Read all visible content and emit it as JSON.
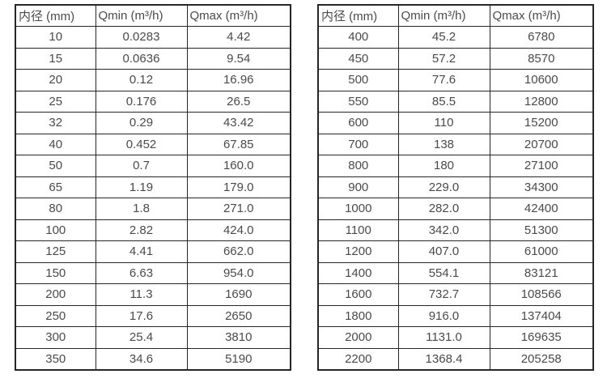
{
  "page": {
    "background_color": "#ffffff",
    "border_color": "#262626",
    "text_color": "#4a4a4a"
  },
  "tables": [
    {
      "name": "flow-table-small-diameters",
      "headers": [
        "内径 (mm)",
        "Qmin (m³/h)",
        "Qmax (m³/h)"
      ],
      "rows": [
        [
          "10",
          "0.0283",
          "4.42"
        ],
        [
          "15",
          "0.0636",
          "9.54"
        ],
        [
          "20",
          "0.12",
          "16.96"
        ],
        [
          "25",
          "0.176",
          "26.5"
        ],
        [
          "32",
          "0.29",
          "43.42"
        ],
        [
          "40",
          "0.452",
          "67.85"
        ],
        [
          "50",
          "0.7",
          "160.0"
        ],
        [
          "65",
          "1.19",
          "179.0"
        ],
        [
          "80",
          "1.8",
          "271.0"
        ],
        [
          "100",
          "2.82",
          "424.0"
        ],
        [
          "125",
          "4.41",
          "662.0"
        ],
        [
          "150",
          "6.63",
          "954.0"
        ],
        [
          "200",
          "11.3",
          "1690"
        ],
        [
          "250",
          "17.6",
          "2650"
        ],
        [
          "300",
          "25.4",
          "3810"
        ],
        [
          "350",
          "34.6",
          "5190"
        ]
      ]
    },
    {
      "name": "flow-table-large-diameters",
      "headers": [
        "内径 (mm)",
        "Qmin (m³/h)",
        "Qmax (m³/h)"
      ],
      "rows": [
        [
          "400",
          "45.2",
          "6780"
        ],
        [
          "450",
          "57.2",
          "8570"
        ],
        [
          "500",
          "77.6",
          "10600"
        ],
        [
          "550",
          "85.5",
          "12800"
        ],
        [
          "600",
          "110",
          "15200"
        ],
        [
          "700",
          "138",
          "20700"
        ],
        [
          "800",
          "180",
          "27100"
        ],
        [
          "900",
          "229.0",
          "34300"
        ],
        [
          "1000",
          "282.0",
          "42400"
        ],
        [
          "1100",
          "342.0",
          "51300"
        ],
        [
          "1200",
          "407.0",
          "61000"
        ],
        [
          "1400",
          "554.1",
          "83121"
        ],
        [
          "1600",
          "732.7",
          "108566"
        ],
        [
          "1800",
          "916.0",
          "137404"
        ],
        [
          "2000",
          "1131.0",
          "169635"
        ],
        [
          "2200",
          "1368.4",
          "205258"
        ]
      ]
    }
  ]
}
